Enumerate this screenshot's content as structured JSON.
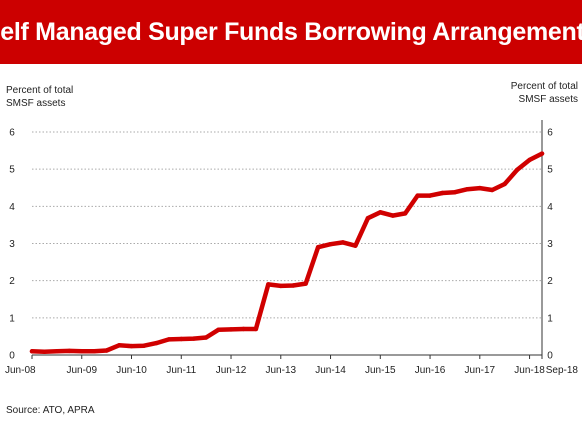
{
  "title": "Self Managed Super Funds Borrowing Arrangements",
  "source": "Source: ATO, APRA",
  "colors": {
    "title_background": "#cc0000",
    "title_text": "#ffffff",
    "series_line": "#d00000",
    "grid": "#aaaaaa"
  },
  "chart_data": {
    "type": "line",
    "title": "Self Managed Super Funds Borrowing Arrangements",
    "ylabel_left": [
      "Percent of total",
      "SMSF assets"
    ],
    "ylabel_right": [
      "Percent of total",
      "SMSF assets"
    ],
    "ylim": [
      0,
      6
    ],
    "yticks": [
      "0",
      "1",
      "2",
      "3",
      "4",
      "5",
      "6"
    ],
    "xlim": [
      "Jun-08",
      "Sep-18"
    ],
    "xticks": [
      "Jun-08",
      "Jun-09",
      "Jun-10",
      "Jun-11",
      "Jun-12",
      "Jun-13",
      "Jun-14",
      "Jun-15",
      "Jun-16",
      "Jun-17",
      "Jun-18",
      "Sep-18"
    ],
    "grid": "horizontal dotted",
    "series": [
      {
        "x": [
          "Jun-08",
          "Sep-08",
          "Dec-08",
          "Mar-09",
          "Jun-09",
          "Sep-09",
          "Dec-09",
          "Mar-10",
          "Jun-10",
          "Sep-10",
          "Dec-10",
          "Mar-11",
          "Jun-11",
          "Sep-11",
          "Dec-11",
          "Mar-12",
          "Jun-12",
          "Sep-12",
          "Dec-12",
          "Mar-13",
          "Jun-13",
          "Sep-13",
          "Dec-13",
          "Mar-14",
          "Jun-14",
          "Sep-14",
          "Dec-14",
          "Mar-15",
          "Jun-15",
          "Sep-15",
          "Dec-15",
          "Mar-16",
          "Jun-16",
          "Sep-16",
          "Dec-16",
          "Mar-17",
          "Jun-17",
          "Sep-17",
          "Dec-17",
          "Mar-18",
          "Jun-18",
          "Sep-18"
        ],
        "values": [
          0.1,
          0.09,
          0.1,
          0.11,
          0.1,
          0.1,
          0.12,
          0.26,
          0.24,
          0.25,
          0.32,
          0.42,
          0.43,
          0.44,
          0.47,
          0.68,
          0.69,
          0.7,
          0.7,
          1.9,
          1.86,
          1.87,
          1.92,
          2.9,
          2.98,
          3.03,
          2.94,
          3.68,
          3.84,
          3.75,
          3.81,
          4.29,
          4.29,
          4.36,
          4.38,
          4.46,
          4.49,
          4.44,
          4.6,
          4.98,
          5.25,
          5.42
        ]
      }
    ]
  }
}
